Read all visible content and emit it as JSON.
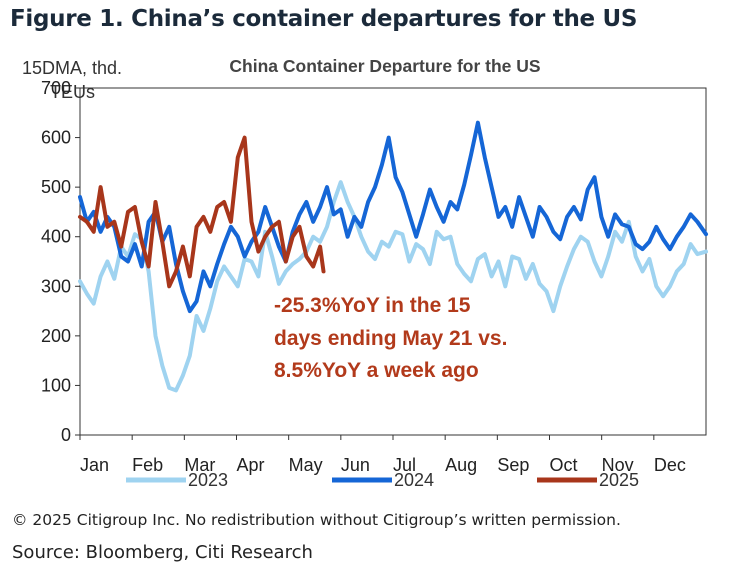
{
  "figure_title": "Figure 1. China’s container departures for the US",
  "copyright": "© 2025 Citigroup Inc. No redistribution without Citigroup’s written permission.",
  "source": "Source: Bloomberg, Citi Research",
  "chart_data": {
    "type": "line",
    "title": "China Container Departure for the US",
    "ylabel_line1": "15DMA, thd.",
    "ylabel_line2": "TEUs",
    "ylim": [
      0,
      700
    ],
    "yticks": [
      "0",
      "100",
      "200",
      "300",
      "400",
      "500",
      "600",
      "700"
    ],
    "xlim": [
      0,
      365
    ],
    "xticks": [
      "Jan",
      "Feb",
      "Mar",
      "Apr",
      "May",
      "Jun",
      "Jul",
      "Aug",
      "Sep",
      "Oct",
      "Nov",
      "Dec"
    ],
    "annotation": [
      "-25.3%YoY in the 15",
      "days ending May 21 vs.",
      "8.5%YoY a week ago"
    ],
    "series": [
      {
        "name": "2023",
        "color": "#9fd3f0",
        "x": [
          0,
          4,
          8,
          12,
          16,
          20,
          24,
          28,
          32,
          36,
          40,
          44,
          48,
          52,
          56,
          60,
          64,
          68,
          72,
          76,
          80,
          84,
          88,
          92,
          96,
          100,
          104,
          108,
          112,
          116,
          120,
          124,
          128,
          132,
          136,
          140,
          144,
          148,
          152,
          156,
          160,
          164,
          168,
          172,
          176,
          180,
          184,
          188,
          192,
          196,
          200,
          204,
          208,
          212,
          216,
          220,
          224,
          228,
          232,
          236,
          240,
          244,
          248,
          252,
          256,
          260,
          264,
          268,
          272,
          276,
          280,
          284,
          288,
          292,
          296,
          300,
          304,
          308,
          312,
          316,
          320,
          324,
          328,
          332,
          336,
          340,
          344,
          348,
          352,
          356,
          360,
          365
        ],
        "y": [
          310,
          285,
          265,
          320,
          350,
          315,
          380,
          360,
          405,
          395,
          330,
          200,
          140,
          95,
          90,
          120,
          160,
          240,
          210,
          255,
          310,
          340,
          320,
          300,
          355,
          350,
          320,
          410,
          360,
          305,
          330,
          345,
          355,
          370,
          400,
          390,
          420,
          470,
          510,
          470,
          440,
          400,
          370,
          355,
          390,
          380,
          410,
          405,
          350,
          385,
          375,
          345,
          410,
          395,
          400,
          345,
          325,
          310,
          355,
          365,
          320,
          350,
          300,
          360,
          355,
          315,
          345,
          305,
          290,
          250,
          300,
          340,
          375,
          400,
          390,
          350,
          320,
          360,
          410,
          390,
          430,
          360,
          330,
          355,
          300,
          280,
          300,
          330,
          345,
          385,
          365,
          370
        ]
      },
      {
        "name": "2024",
        "color": "#1566d6",
        "x": [
          0,
          4,
          8,
          12,
          16,
          20,
          24,
          28,
          32,
          36,
          40,
          44,
          48,
          52,
          56,
          60,
          64,
          68,
          72,
          76,
          80,
          84,
          88,
          92,
          96,
          100,
          104,
          108,
          112,
          116,
          120,
          124,
          128,
          132,
          136,
          140,
          144,
          148,
          152,
          156,
          160,
          164,
          168,
          172,
          176,
          180,
          184,
          188,
          192,
          196,
          200,
          204,
          208,
          212,
          216,
          220,
          224,
          228,
          232,
          236,
          240,
          244,
          248,
          252,
          256,
          260,
          264,
          268,
          272,
          276,
          280,
          284,
          288,
          292,
          296,
          300,
          304,
          308,
          312,
          316,
          320,
          324,
          328,
          332,
          336,
          340,
          344,
          348,
          352,
          356,
          360,
          365
        ],
        "y": [
          480,
          430,
          450,
          410,
          440,
          420,
          360,
          350,
          385,
          340,
          430,
          450,
          390,
          420,
          345,
          290,
          250,
          270,
          330,
          300,
          345,
          385,
          420,
          400,
          360,
          390,
          410,
          460,
          420,
          380,
          350,
          410,
          445,
          470,
          430,
          460,
          500,
          445,
          455,
          400,
          440,
          420,
          470,
          500,
          545,
          600,
          520,
          490,
          445,
          400,
          445,
          495,
          460,
          430,
          470,
          455,
          505,
          565,
          630,
          560,
          500,
          440,
          460,
          420,
          480,
          440,
          400,
          460,
          440,
          410,
          395,
          440,
          460,
          435,
          495,
          520,
          440,
          400,
          445,
          425,
          420,
          385,
          375,
          390,
          420,
          395,
          375,
          400,
          420,
          445,
          430,
          405
        ]
      },
      {
        "name": "2025",
        "color": "#a8361b",
        "x": [
          0,
          4,
          8,
          12,
          16,
          20,
          24,
          28,
          32,
          36,
          40,
          44,
          48,
          52,
          56,
          60,
          64,
          68,
          72,
          76,
          80,
          84,
          88,
          92,
          96,
          100,
          104,
          108,
          112,
          116,
          120,
          124,
          128,
          132,
          136,
          140,
          142
        ],
        "y": [
          440,
          430,
          410,
          500,
          420,
          430,
          380,
          450,
          460,
          390,
          340,
          470,
          390,
          300,
          330,
          380,
          320,
          420,
          440,
          410,
          460,
          470,
          430,
          560,
          600,
          430,
          370,
          400,
          420,
          430,
          350,
          400,
          420,
          360,
          340,
          380,
          330
        ]
      }
    ]
  }
}
